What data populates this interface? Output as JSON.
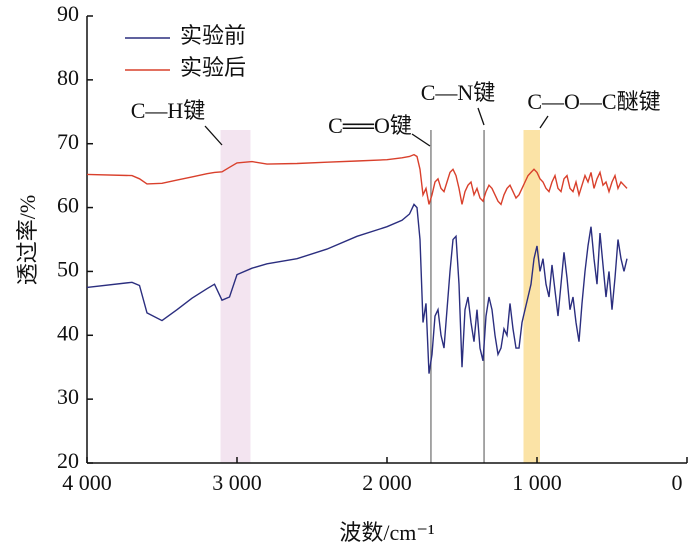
{
  "chart_data": {
    "type": "line",
    "x_label": "波数/cm⁻¹",
    "y_label": "透过率/%",
    "xlim": [
      4000,
      0
    ],
    "ylim": [
      20,
      90
    ],
    "xticks": [
      {
        "value": 4000,
        "label": "4 000"
      },
      {
        "value": 3000,
        "label": "3 000"
      },
      {
        "value": 2000,
        "label": "2 000"
      },
      {
        "value": 1000,
        "label": "1 000"
      },
      0
    ],
    "yticks": [
      20,
      30,
      40,
      50,
      60,
      70,
      80,
      90
    ],
    "legend": "upper left",
    "x": [
      4000,
      3700,
      3650,
      3600,
      3500,
      3400,
      3300,
      3200,
      3150,
      3100,
      3050,
      3000,
      2900,
      2800,
      2600,
      2400,
      2200,
      2000,
      1900,
      1850,
      1820,
      1800,
      1780,
      1760,
      1740,
      1720,
      1700,
      1680,
      1660,
      1640,
      1620,
      1600,
      1580,
      1560,
      1540,
      1520,
      1500,
      1480,
      1460,
      1440,
      1420,
      1400,
      1380,
      1360,
      1340,
      1320,
      1300,
      1280,
      1260,
      1240,
      1220,
      1200,
      1180,
      1160,
      1140,
      1120,
      1100,
      1080,
      1060,
      1040,
      1020,
      1000,
      980,
      960,
      940,
      920,
      900,
      880,
      860,
      840,
      820,
      800,
      780,
      760,
      740,
      720,
      700,
      680,
      660,
      640,
      620,
      600,
      580,
      560,
      540,
      520,
      500,
      480,
      460,
      440,
      420,
      400
    ],
    "series": [
      {
        "name": "实验前",
        "color": "#2b2e7f",
        "values": [
          47.5,
          48.3,
          47.8,
          43.5,
          42.3,
          44,
          45.8,
          47.3,
          48,
          45.5,
          46,
          49.5,
          50.5,
          51.2,
          52,
          53.5,
          55.5,
          57,
          58,
          59,
          60.5,
          60,
          55,
          42,
          45,
          34,
          37,
          43,
          44,
          40,
          38,
          44,
          50,
          55,
          55.5,
          48,
          35,
          44,
          46,
          42,
          39,
          44,
          38,
          36,
          43,
          46,
          44,
          40,
          37,
          38,
          41,
          40,
          45,
          41,
          38,
          38,
          42,
          44,
          46,
          48,
          52,
          54,
          50,
          52,
          48,
          46,
          51,
          47,
          43,
          48,
          53,
          49,
          44,
          46,
          42,
          39,
          45,
          50,
          54,
          57,
          52,
          48,
          56,
          51,
          46,
          50,
          44,
          49,
          55,
          52,
          50,
          52
        ]
      },
      {
        "name": "实验后",
        "color": "#d9402c",
        "values": [
          65.2,
          65,
          64.5,
          63.7,
          63.8,
          64.3,
          64.8,
          65.3,
          65.5,
          65.6,
          66.3,
          67,
          67.2,
          66.8,
          66.9,
          67.1,
          67.3,
          67.5,
          67.8,
          68,
          68.3,
          68,
          66,
          62,
          63,
          60.5,
          62,
          64,
          64.5,
          63,
          62.5,
          64,
          65.5,
          66,
          65,
          63,
          60.5,
          62.5,
          63.5,
          64,
          62,
          63,
          61.5,
          61,
          62.5,
          63.5,
          63,
          62,
          61,
          60.5,
          62,
          63,
          63.5,
          62.5,
          61.5,
          62,
          63,
          64,
          65,
          65.5,
          66,
          65.5,
          64.5,
          64,
          63,
          62.5,
          64,
          65,
          63,
          62.5,
          64.5,
          65,
          63,
          62.5,
          64,
          62,
          63.5,
          65,
          64,
          65.5,
          63,
          64.5,
          65.5,
          63.5,
          64,
          62.5,
          64,
          65,
          63,
          64,
          63.5,
          63
        ]
      }
    ],
    "annotations": [
      {
        "text": "C—H键",
        "x": [
          3110,
          2910
        ],
        "color": "#f3e4f0"
      },
      {
        "text": "C══O键",
        "x": 1707
      },
      {
        "text": "C—N键",
        "x": 1353
      },
      {
        "text": "C—O—C醚键",
        "x": [
          1090,
          980
        ],
        "color": "#fbe3a6"
      }
    ]
  }
}
